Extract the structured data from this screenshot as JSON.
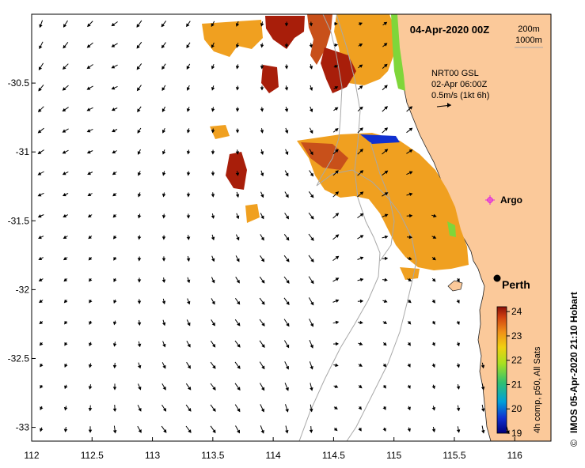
{
  "title": "04-Apr-2020 00Z",
  "depth_legend": {
    "line1": "200m",
    "line2": "1000m"
  },
  "current_info": {
    "line1": "NRT00 GSL",
    "line2": "02-Apr 06:00Z",
    "line3": "0.5m/s (1kt 6h)"
  },
  "colorbar": {
    "label": "4h comp, p50, All Sats",
    "ticks": [
      "24",
      "23",
      "22",
      "21",
      "20",
      "19"
    ],
    "min": 19,
    "max": 24.2
  },
  "axes": {
    "x_ticks": [
      "112",
      "112.5",
      "113",
      "113.5",
      "114",
      "114.5",
      "115",
      "115.5",
      "116"
    ],
    "y_ticks": [
      "-30.5",
      "-31",
      "-31.5",
      "-32",
      "-32.5",
      "-33"
    ],
    "lon_range": [
      112,
      116.3
    ],
    "lat_range": [
      -33.1,
      -30.0
    ]
  },
  "places": [
    {
      "name": "Argo",
      "lon": 115.8,
      "lat": -31.4
    },
    {
      "name": "Perth",
      "lon": 115.86,
      "lat": -31.95
    }
  ],
  "credit": "IMOS 05-Apr-2020 21:10 Hobart",
  "copyright": "©",
  "colors": {
    "land": "#fbc99a",
    "sst_warm": "#f0a020",
    "sst_hot": "#a81e0a",
    "sst_cool": "#7fd63a",
    "bathymetry": "#a8a8a8"
  }
}
